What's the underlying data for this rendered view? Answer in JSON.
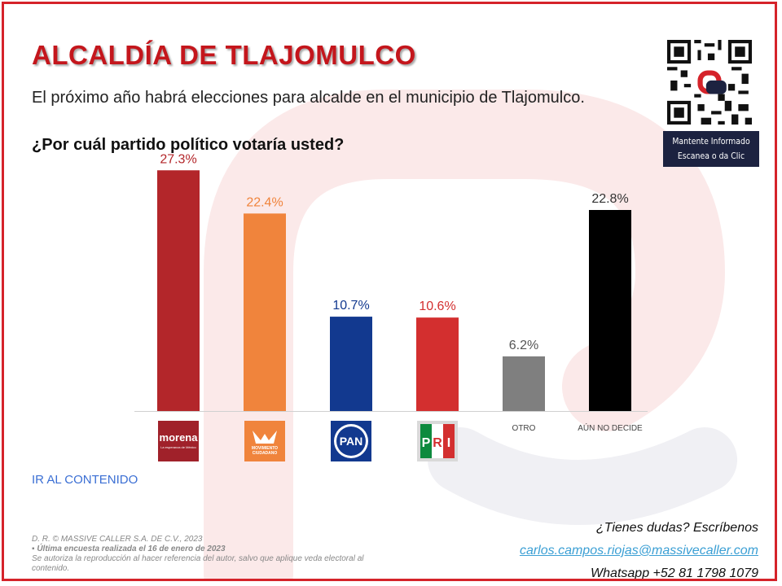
{
  "header": {
    "title": "ALCALDÍA DE TLAJOMULCO",
    "subtitle": "El próximo año habrá elecciones para alcalde en el municipio de Tlajomulco.",
    "question": "¿Por cuál partido político votaría usted?"
  },
  "qr": {
    "caption_line1": "Mantente Informado",
    "caption_line2": "Escanea o da Clic"
  },
  "chart_data": {
    "type": "bar",
    "title": "",
    "xlabel": "",
    "ylabel": "",
    "ylim": [
      0,
      30
    ],
    "categories": [
      "morena",
      "MOVIMIENTO CIUDADANO",
      "PAN",
      "PRI",
      "OTRO",
      "AÚN NO DECIDE"
    ],
    "values": [
      27.3,
      22.4,
      10.7,
      10.6,
      6.2,
      22.8
    ],
    "value_labels": [
      "27.3%",
      "22.4%",
      "10.7%",
      "10.6%",
      "6.2%",
      "22.8%"
    ],
    "text_labels": [
      "",
      "",
      "",
      "",
      "OTRO",
      "AÚN NO DECIDE"
    ],
    "colors": [
      "#b3262a",
      "#f0843c",
      "#12398f",
      "#d32f2f",
      "#7f7f7f",
      "#000000"
    ],
    "label_colors": [
      "#b3262a",
      "#f0843c",
      "#12398f",
      "#d32f2f",
      "#555555",
      "#333333"
    ],
    "grid": false
  },
  "logos": {
    "morena_main": "morena",
    "morena_sub": "La esperanza de México",
    "mc_line1": "MOVIMIENTO",
    "mc_line2": "CIUDADANO",
    "pan": "PAN",
    "pri_p": "P",
    "pri_r": "R",
    "pri_i": "I"
  },
  "nav": {
    "ir_contenido": "IR AL CONTENIDO"
  },
  "footer": {
    "copyright": "D. R. © MASSIVE CALLER S.A. DE C.V., 2023",
    "survey": "Última encuesta realizada el 16 de enero de 2023",
    "reproduction": "Se autoriza la reproducción al hacer referencia del autor, salvo que aplique veda electoral al contenido.",
    "contact_question": "¿Tienes dudas? Escríbenos",
    "email": "carlos.campos.riojas@massivecaller.com",
    "whatsapp": "Whatsapp +52 81 1798 1079"
  }
}
